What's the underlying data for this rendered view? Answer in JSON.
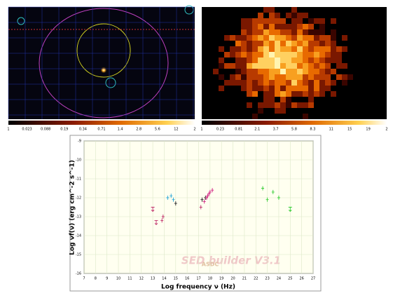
{
  "images": [
    {
      "colorbar_labels": [
        "1",
        "0.023",
        "0.088",
        "0.19",
        "0.34",
        "0.71",
        "1.4",
        "2.8",
        "5.6",
        "12",
        "2"
      ]
    },
    {
      "colorbar_labels": [
        "1",
        "0.23",
        "0.81",
        "2.1",
        "3.7",
        "5.8",
        "8.3",
        "11",
        "15",
        "19",
        "2"
      ]
    }
  ],
  "chart_data": {
    "type": "scatter",
    "xlabel": "Log frequency ν (Hz)",
    "ylabel": "Log νf(ν) (erg cm^-2 s^-1)",
    "watermark": "SED builder V3.1",
    "logo": "ASDC",
    "xlim": [
      7,
      27
    ],
    "xticks": [
      7,
      8,
      9,
      10,
      11,
      12,
      13,
      14,
      15,
      16,
      17,
      18,
      19,
      20,
      21,
      22,
      23,
      24,
      25,
      26,
      27
    ],
    "ylim": [
      -16,
      -9
    ],
    "yticks": [
      -16,
      -15,
      -14,
      -13,
      -12,
      -11,
      -10,
      -9
    ],
    "grid": true,
    "series": [
      {
        "color": "#c0306a",
        "marker": "arrow",
        "x": [
          13.0,
          13.3
        ],
        "values": [
          -12.5,
          -13.2
        ]
      },
      {
        "color": "#c0306a",
        "marker": "cross",
        "x": [
          13.8,
          13.9,
          17.2
        ],
        "values": [
          -13.2,
          -13.0,
          -12.5
        ]
      },
      {
        "color": "#2aa7d8",
        "marker": "cross",
        "x": [
          14.3,
          14.6,
          14.8
        ],
        "values": [
          -12.0,
          -11.9,
          -12.1
        ]
      },
      {
        "color": "#222222",
        "marker": "cross",
        "x": [
          15.0,
          17.3,
          17.6
        ],
        "values": [
          -12.3,
          -12.1,
          -12.0
        ]
      },
      {
        "color": "#d02080",
        "marker": "cross",
        "x": [
          17.5,
          17.7,
          17.8,
          17.9,
          18.0,
          18.2
        ],
        "values": [
          -12.2,
          -12.0,
          -11.9,
          -11.8,
          -11.7,
          -11.6
        ]
      },
      {
        "color": "#33cc33",
        "marker": "cross",
        "x": [
          22.6,
          23.0,
          23.5,
          24.0
        ],
        "values": [
          -11.5,
          -12.1,
          -11.7,
          -12.0
        ]
      },
      {
        "color": "#33cc33",
        "marker": "arrow",
        "x": [
          25.0
        ],
        "values": [
          -12.5
        ]
      }
    ]
  }
}
